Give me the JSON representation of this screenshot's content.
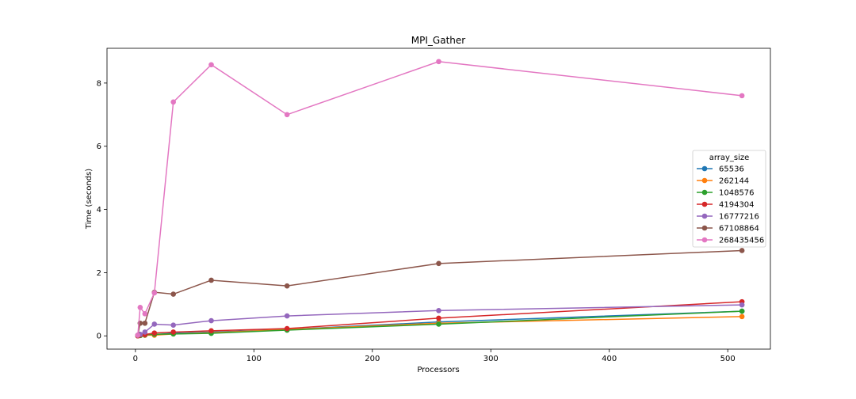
{
  "chart_data": {
    "type": "line",
    "title": "MPI_Gather",
    "xlabel": "Processors",
    "ylabel": "Time (seconds)",
    "xlim": [
      -24,
      536
    ],
    "ylim": [
      -0.42,
      9.1
    ],
    "xticks": [
      0,
      100,
      200,
      300,
      400,
      500
    ],
    "yticks": [
      0,
      2,
      4,
      6,
      8
    ],
    "legend": {
      "title": "array_size",
      "placement": "center-right"
    },
    "x": [
      2,
      4,
      8,
      16,
      32,
      64,
      128,
      256,
      512
    ],
    "series": [
      {
        "name": "65536",
        "color": "#1f77b4",
        "values": [
          0.0,
          0.01,
          0.02,
          0.04,
          0.08,
          0.12,
          0.2,
          0.44,
          0.78
        ]
      },
      {
        "name": "262144",
        "color": "#ff7f0e",
        "values": [
          0.0,
          0.01,
          0.02,
          0.02,
          0.06,
          0.1,
          0.2,
          0.4,
          0.61
        ]
      },
      {
        "name": "1048576",
        "color": "#2ca02c",
        "values": [
          0.0,
          0.01,
          0.03,
          0.05,
          0.06,
          0.08,
          0.18,
          0.37,
          0.78
        ]
      },
      {
        "name": "4194304",
        "color": "#d62728",
        "values": [
          0.0,
          0.03,
          0.04,
          0.09,
          0.12,
          0.16,
          0.23,
          0.56,
          1.08
        ]
      },
      {
        "name": "16777216",
        "color": "#9467bd",
        "values": [
          0.02,
          0.05,
          0.12,
          0.37,
          0.34,
          0.48,
          0.63,
          0.8,
          0.98
        ]
      },
      {
        "name": "67108864",
        "color": "#8c564b",
        "values": [
          0.02,
          0.4,
          0.4,
          1.38,
          1.32,
          1.76,
          1.58,
          2.29,
          2.7
        ]
      },
      {
        "name": "268435456",
        "color": "#e377c2",
        "values": [
          0.02,
          0.9,
          0.7,
          1.36,
          7.4,
          8.58,
          7.0,
          8.68,
          7.6
        ]
      }
    ]
  }
}
